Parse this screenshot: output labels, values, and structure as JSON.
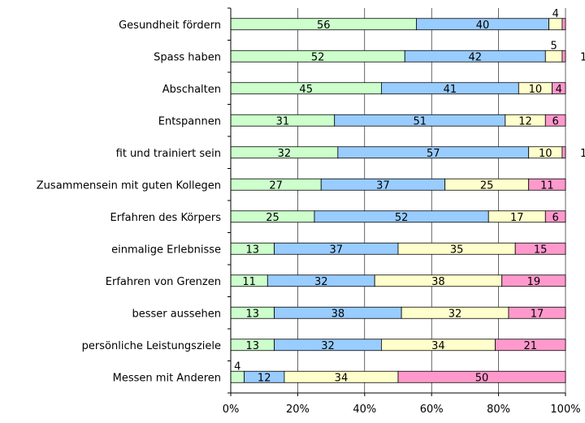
{
  "chart_data": {
    "type": "bar",
    "orientation": "horizontal",
    "stacked": "percent",
    "categories": [
      "Gesundheit fördern",
      "Spass haben",
      "Abschalten",
      "Entspannen",
      "fit und trainiert sein",
      "Zusammensein mit guten Kollegen",
      "Erfahren des Körpers",
      "einmalige Erlebnisse",
      "Erfahren von Grenzen",
      "besser aussehen",
      "persönliche Leistungsziele",
      "Messen mit Anderen"
    ],
    "series": [
      {
        "color": "#ccffcc",
        "values": [
          56,
          52,
          45,
          31,
          32,
          27,
          25,
          13,
          11,
          13,
          13,
          4
        ]
      },
      {
        "color": "#99ccff",
        "values": [
          40,
          42,
          41,
          51,
          57,
          37,
          52,
          37,
          32,
          38,
          32,
          12
        ]
      },
      {
        "color": "#ffffcc",
        "values": [
          4,
          5,
          10,
          12,
          10,
          25,
          17,
          35,
          38,
          32,
          34,
          34
        ]
      },
      {
        "color": "#ff99cc",
        "values": [
          1,
          1,
          4,
          6,
          1,
          11,
          6,
          15,
          19,
          17,
          21,
          50
        ]
      }
    ],
    "outside_labels": [
      {
        "category": 0,
        "series": 2,
        "text": "4"
      },
      {
        "category": 1,
        "series": 2,
        "text": "5"
      },
      {
        "category": 1,
        "series": 3,
        "text": "1"
      },
      {
        "category": 4,
        "series": 3,
        "text": "1"
      },
      {
        "category": 11,
        "series": 0,
        "text": "4"
      }
    ],
    "x_ticks": [
      "0%",
      "20%",
      "40%",
      "60%",
      "80%",
      "100%"
    ],
    "xlim": [
      0,
      100
    ],
    "grid": true,
    "title": "",
    "xlabel": "",
    "ylabel": ""
  }
}
